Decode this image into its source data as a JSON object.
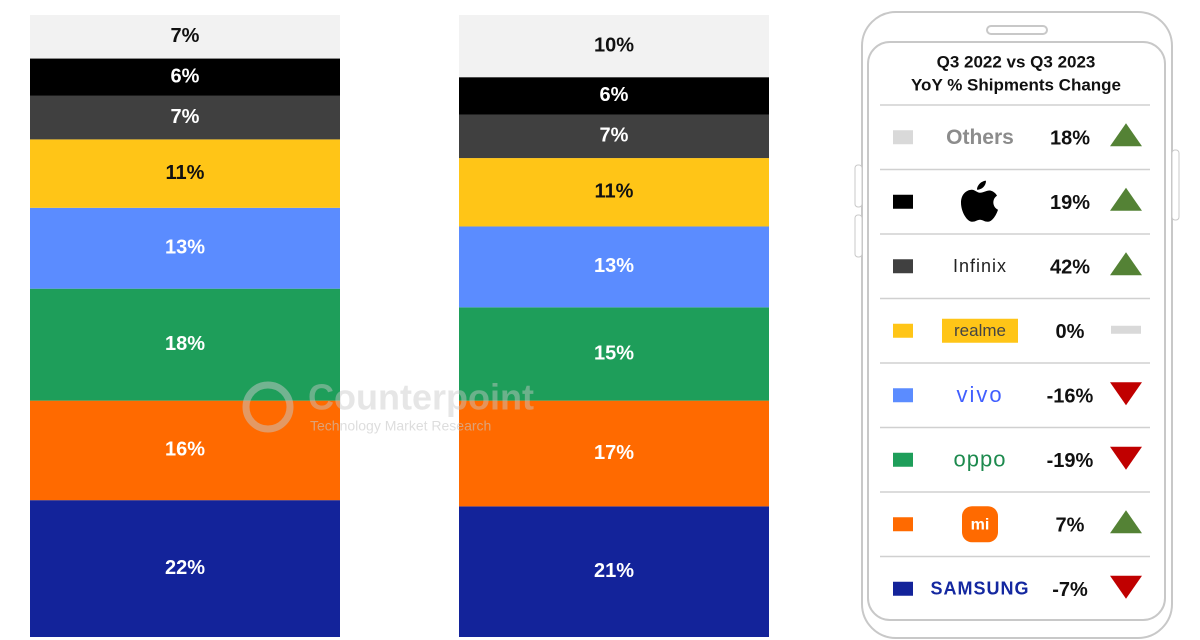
{
  "chart_data": {
    "type": "bar",
    "stacked": true,
    "categories": [
      null,
      null
    ],
    "ylim": [
      0,
      100
    ],
    "series": [
      {
        "color": "#13239a",
        "values": [
          22,
          21
        ],
        "value_labels": [
          "22%",
          "21%"
        ]
      },
      {
        "color": "#ff6a00",
        "values": [
          16,
          17
        ],
        "value_labels": [
          "16%",
          "17%"
        ]
      },
      {
        "color": "#1e9e5a",
        "values": [
          18,
          15
        ],
        "value_labels": [
          "18%",
          "15%"
        ]
      },
      {
        "color": "#5b8cff",
        "values": [
          13,
          13
        ],
        "value_labels": [
          "13%",
          "13%"
        ]
      },
      {
        "color": "#ffc517",
        "values": [
          11,
          11
        ],
        "value_labels": [
          "11%",
          "11%"
        ]
      },
      {
        "color": "#404040",
        "values": [
          7,
          7
        ],
        "value_labels": [
          "7%",
          "7%"
        ]
      },
      {
        "color": "#000000",
        "values": [
          6,
          6
        ],
        "value_labels": [
          "6%",
          "6%"
        ]
      },
      {
        "color": "#f2f2f2",
        "values": [
          7,
          10
        ],
        "value_labels": [
          "7%",
          "10%"
        ]
      }
    ]
  },
  "watermark": {
    "name": "Counterpoint",
    "tagline": "Technology Market Research"
  },
  "panel": {
    "title_lines": [
      "Q3 2022 vs Q3 2023",
      "YoY % Shipments Change"
    ],
    "rows": [
      {
        "brand": "Others",
        "change": "18%",
        "trend": "up"
      },
      {
        "brand": null,
        "change": "19%",
        "trend": "up"
      },
      {
        "brand": "Infinix",
        "change": "42%",
        "trend": "up"
      },
      {
        "brand": "realme",
        "change": "0%",
        "trend": "flat"
      },
      {
        "brand": "vivo",
        "change": "-16%",
        "trend": "down"
      },
      {
        "brand": "oppo",
        "change": "-19%",
        "trend": "down"
      },
      {
        "brand": "mi",
        "change": "7%",
        "trend": "up"
      },
      {
        "brand": "SAMSUNG",
        "change": "-7%",
        "trend": "down"
      }
    ]
  }
}
